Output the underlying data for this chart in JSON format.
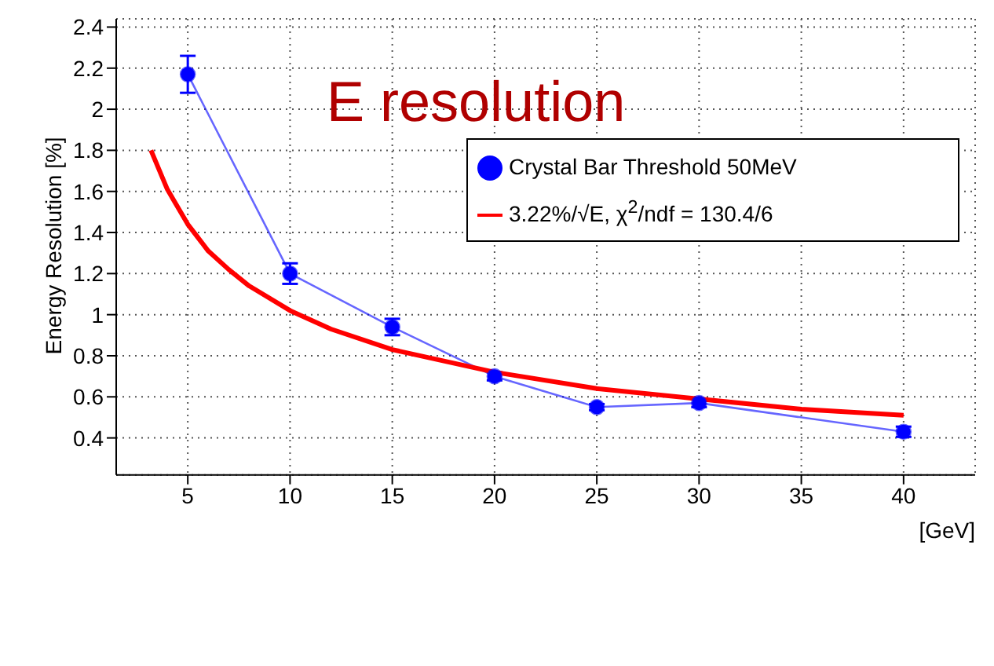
{
  "chart_data": {
    "type": "line",
    "title": "E resolution",
    "xlabel": "[GeV]",
    "ylabel": "Energy Resolution [%]",
    "xlim": [
      1.5,
      43.5
    ],
    "xticks": [
      5,
      10,
      15,
      20,
      25,
      30,
      35,
      40
    ],
    "ylim": [
      0.22,
      2.44
    ],
    "yticks": [
      0.4,
      0.6,
      0.8,
      1,
      1.2,
      1.4,
      1.6,
      1.8,
      2,
      2.2,
      2.4
    ],
    "grid": true,
    "legend": "top right",
    "series": [
      {
        "name": "Crystal Bar Threshold 50MeV",
        "color": "#0000ff",
        "marker": "circle",
        "x": [
          5,
          10,
          15,
          20,
          25,
          30,
          40
        ],
        "values": [
          2.17,
          1.2,
          0.94,
          0.7,
          0.55,
          0.57,
          0.43
        ],
        "errors": [
          0.09,
          0.05,
          0.04,
          0.02,
          0.015,
          0.02,
          0.025
        ]
      },
      {
        "name": "3.22%/√E, χ$^{2}$/ndf = 130.4/6",
        "color": "#ff0000",
        "marker": "none",
        "x": [
          3.2,
          4,
          5,
          6,
          7,
          8,
          10,
          12,
          15,
          20,
          25,
          30,
          35,
          40
        ],
        "values": [
          1.8,
          1.61,
          1.44,
          1.31,
          1.22,
          1.14,
          1.02,
          0.93,
          0.83,
          0.72,
          0.64,
          0.59,
          0.54,
          0.51
        ]
      }
    ]
  }
}
